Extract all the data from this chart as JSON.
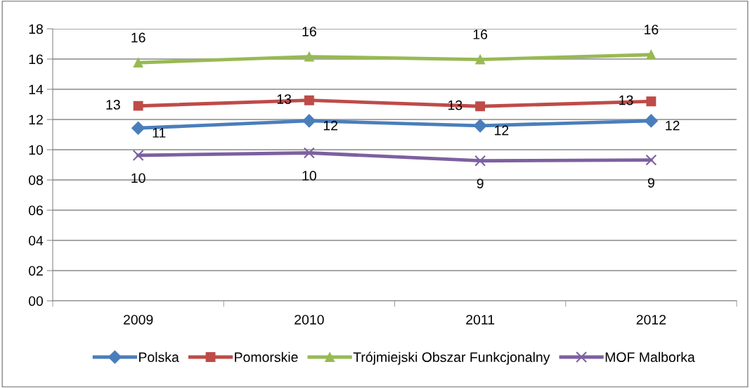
{
  "chart_data": {
    "type": "line",
    "categories": [
      "2009",
      "2010",
      "2011",
      "2012"
    ],
    "series": [
      {
        "name": "Polska",
        "color": "#4a7ebb",
        "marker": "diamond",
        "values": [
          11.43,
          11.91,
          11.59,
          11.91
        ],
        "value_labels": [
          "11",
          "12",
          "12",
          "12"
        ]
      },
      {
        "name": "Pomorskie",
        "color": "#be4b48",
        "marker": "square",
        "values": [
          12.9,
          13.27,
          12.87,
          13.2
        ],
        "value_labels": [
          "13",
          "13",
          "13",
          "13"
        ]
      },
      {
        "name": "Trójmiejski Obszar Funkcjonalny",
        "color": "#98b954",
        "marker": "triangle",
        "values": [
          15.76,
          16.16,
          15.97,
          16.29
        ],
        "value_labels": [
          "16",
          "16",
          "16",
          "16"
        ]
      },
      {
        "name": "MOF Malborka",
        "color": "#7d60a0",
        "marker": "cross",
        "values": [
          9.63,
          9.79,
          9.27,
          9.32
        ],
        "value_labels": [
          "10",
          "10",
          "9",
          "9"
        ]
      }
    ],
    "ylim": [
      0,
      18
    ],
    "yticks": [
      {
        "value": 0,
        "label": "00"
      },
      {
        "value": 2,
        "label": "02"
      },
      {
        "value": 4,
        "label": "04"
      },
      {
        "value": 6,
        "label": "06"
      },
      {
        "value": 8,
        "label": "08"
      },
      {
        "value": 10,
        "label": "10"
      },
      {
        "value": 12,
        "label": "12"
      },
      {
        "value": 14,
        "label": "14"
      },
      {
        "value": 16,
        "label": "16"
      },
      {
        "value": 18,
        "label": "18"
      }
    ],
    "grid": "y",
    "legend": "bottom",
    "line_style": "solid"
  }
}
